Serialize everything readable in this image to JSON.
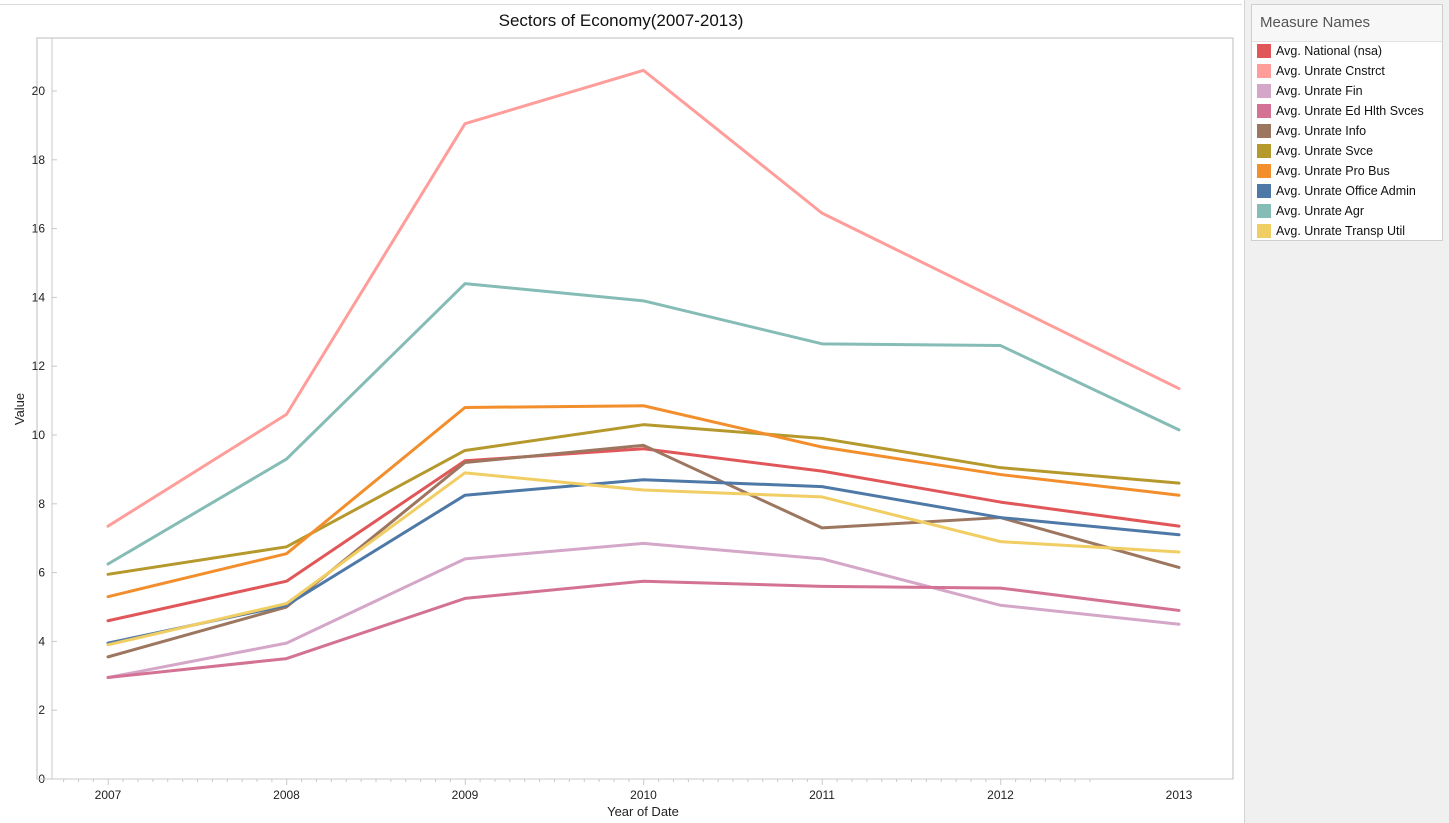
{
  "chart_data": {
    "type": "line",
    "title": "Sectors of Economy(2007-2013)",
    "xlabel": "Year of Date",
    "ylabel": "Value",
    "categories": [
      "2007",
      "2008",
      "2009",
      "2010",
      "2011",
      "2012",
      "2013"
    ],
    "ylim": [
      0,
      21.5
    ],
    "yticks": [
      0,
      2,
      4,
      6,
      8,
      10,
      12,
      14,
      16,
      18,
      20
    ],
    "grid": false,
    "legend_title": "Measure Names",
    "legend_position": "right",
    "series": [
      {
        "name": "Avg. National (nsa)",
        "color": "#e15759",
        "values": [
          4.6,
          5.75,
          9.25,
          9.6,
          8.95,
          8.05,
          7.35
        ]
      },
      {
        "name": "Avg. Unrate Cnstrct",
        "color": "#ff9d9a",
        "values": [
          7.35,
          10.6,
          19.05,
          20.6,
          16.45,
          13.9,
          11.35
        ]
      },
      {
        "name": "Avg. Unrate Fin",
        "color": "#d4a6c8",
        "values": [
          2.95,
          3.95,
          6.4,
          6.85,
          6.4,
          5.05,
          4.5
        ]
      },
      {
        "name": "Avg. Unrate Ed Hlth Svces",
        "color": "#d37295",
        "values": [
          2.95,
          3.5,
          5.25,
          5.75,
          5.6,
          5.55,
          4.9
        ]
      },
      {
        "name": "Avg. Unrate Info",
        "color": "#9d7660",
        "values": [
          3.55,
          5.0,
          9.2,
          9.7,
          7.3,
          7.6,
          6.15
        ]
      },
      {
        "name": "Avg. Unrate Svce",
        "color": "#b6992d",
        "values": [
          5.95,
          6.75,
          9.55,
          10.3,
          9.9,
          9.05,
          8.6
        ]
      },
      {
        "name": "Avg. Unrate Pro Bus",
        "color": "#f28e2b",
        "values": [
          5.3,
          6.55,
          10.8,
          10.85,
          9.65,
          8.85,
          8.25
        ]
      },
      {
        "name": "Avg. Unrate Office Admin",
        "color": "#4e79a7",
        "values": [
          3.95,
          5.05,
          8.25,
          8.7,
          8.5,
          7.6,
          7.1
        ]
      },
      {
        "name": "Avg. Unrate Agr",
        "color": "#86bcb6",
        "values": [
          6.25,
          9.3,
          14.4,
          13.9,
          12.65,
          12.6,
          10.15
        ]
      },
      {
        "name": "Avg. Unrate Transp Util",
        "color": "#f1ce63",
        "values": [
          3.9,
          5.1,
          8.9,
          8.4,
          8.2,
          6.9,
          6.6
        ]
      }
    ]
  }
}
